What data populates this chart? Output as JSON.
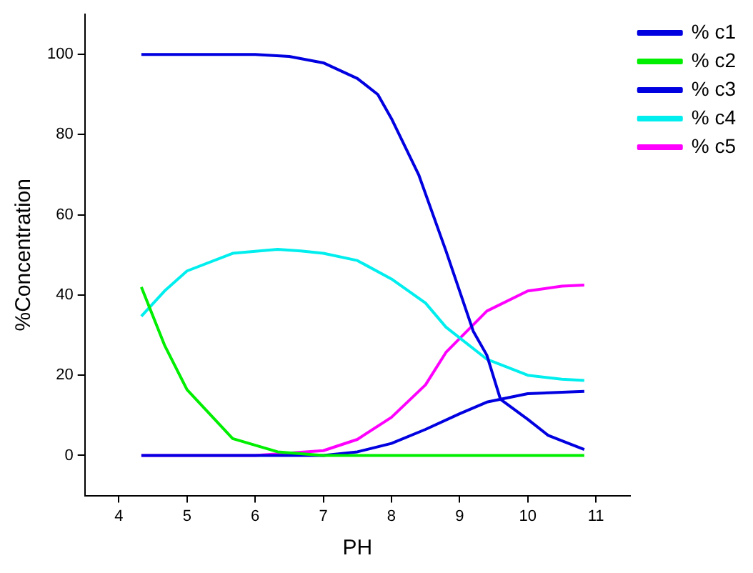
{
  "chart_data": {
    "type": "line",
    "xlabel": "PH",
    "ylabel": "%Concentration",
    "xlim": [
      3.5,
      11.5
    ],
    "xticks": [
      4,
      5,
      6,
      7,
      8,
      9,
      10,
      11
    ],
    "ylim": [
      -10,
      110
    ],
    "yticks": [
      0,
      20,
      40,
      60,
      80,
      100
    ],
    "grid": false,
    "legend": "top right",
    "marker": "none",
    "line_style": "solid",
    "series": [
      {
        "name": "% c1",
        "color": "#0000e0",
        "x": [
          4.33,
          5,
          6,
          6.5,
          7,
          7.5,
          7.8,
          8,
          8.4,
          8.8,
          9.2,
          9.4,
          9.6,
          10,
          10.3,
          10.6,
          10.83
        ],
        "values": [
          100,
          100,
          100,
          99.5,
          97.9,
          94,
          90,
          84,
          70,
          51,
          31,
          25,
          14,
          9,
          5,
          3,
          1.5
        ]
      },
      {
        "name": "% c2",
        "color": "#00ee00",
        "x": [
          4.33,
          4.67,
          5,
          5.67,
          6.33,
          7,
          8,
          9,
          10,
          10.83
        ],
        "values": [
          42,
          27.5,
          16.4,
          4.2,
          0.9,
          0,
          0,
          0,
          0,
          0
        ]
      },
      {
        "name": "% c3",
        "color": "#0000e0",
        "x": [
          4.33,
          6,
          7,
          7.5,
          8,
          8.5,
          9,
          9.4,
          10,
          10.83
        ],
        "values": [
          0,
          0,
          0,
          0.9,
          3,
          6.5,
          10.4,
          13.3,
          15.4,
          16
        ]
      },
      {
        "name": "% c4",
        "color": "#00eeee",
        "x": [
          4.33,
          4.67,
          5,
          5.67,
          6.33,
          6.67,
          7,
          7.5,
          8,
          8.5,
          8.8,
          9.4,
          10,
          10.5,
          10.83
        ],
        "values": [
          34.7,
          41,
          46,
          50.4,
          51.4,
          51,
          50.4,
          48.6,
          44,
          38,
          32,
          24,
          20,
          19,
          18.7
        ]
      },
      {
        "name": "% c5",
        "color": "#ff00ff",
        "x": [
          4.33,
          6,
          7,
          7.5,
          8,
          8.5,
          8.8,
          9.4,
          10,
          10.5,
          10.83
        ],
        "values": [
          0,
          0,
          1.2,
          4,
          9.5,
          17.6,
          25.7,
          36,
          41,
          42.2,
          42.5
        ]
      }
    ]
  }
}
